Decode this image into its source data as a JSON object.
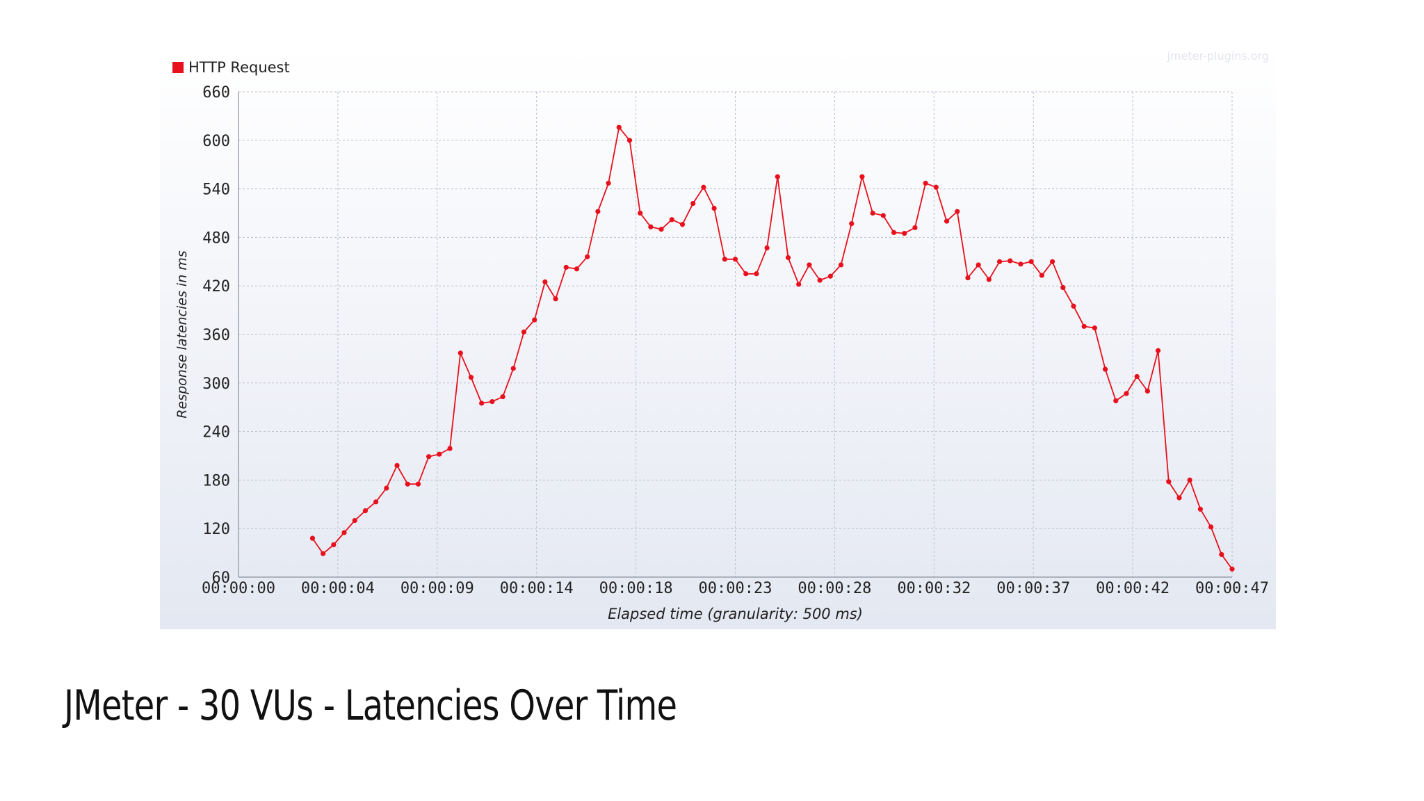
{
  "slide": {
    "title": "JMeter - 30 VUs - Latencies Over Time"
  },
  "watermark": "jmeter-plugins.org",
  "colors": {
    "series": "#e8101c",
    "grid": "#b9bfc9",
    "panel_top": "#ffffff",
    "panel_bottom": "#e4e8f2"
  },
  "chart_data": {
    "type": "line",
    "xlabel": "Elapsed time (granularity: 500 ms)",
    "ylabel": "Response latencies in ms",
    "xlim": [
      0,
      47
    ],
    "ylim": [
      60,
      660
    ],
    "x_ticks": [
      0,
      4.7,
      9.4,
      14.1,
      18.8,
      23.5,
      28.2,
      32.9,
      37.6,
      42.3,
      47
    ],
    "x_tick_labels": [
      "00:00:00",
      "00:00:04",
      "00:00:09",
      "00:00:14",
      "00:00:18",
      "00:00:23",
      "00:00:28",
      "00:00:32",
      "00:00:37",
      "00:00:42",
      "00:00:47"
    ],
    "y_ticks": [
      60,
      120,
      180,
      240,
      300,
      360,
      420,
      480,
      540,
      600,
      660
    ],
    "grid": true,
    "legend": "top-left",
    "series": [
      {
        "name": "HTTP Request",
        "points": [
          [
            3.5,
            108
          ],
          [
            4.0,
            89
          ],
          [
            4.5,
            100
          ],
          [
            5.0,
            115
          ],
          [
            5.5,
            130
          ],
          [
            6.0,
            142
          ],
          [
            6.5,
            153
          ],
          [
            7.0,
            170
          ],
          [
            7.5,
            198
          ],
          [
            8.0,
            175
          ],
          [
            8.5,
            175
          ],
          [
            9.0,
            209
          ],
          [
            9.5,
            212
          ],
          [
            10.0,
            219
          ],
          [
            10.5,
            337
          ],
          [
            11.0,
            307
          ],
          [
            11.5,
            275
          ],
          [
            12.0,
            277
          ],
          [
            12.5,
            283
          ],
          [
            13.0,
            318
          ],
          [
            13.5,
            363
          ],
          [
            14.0,
            378
          ],
          [
            14.5,
            425
          ],
          [
            15.0,
            404
          ],
          [
            15.5,
            443
          ],
          [
            16.0,
            441
          ],
          [
            16.5,
            456
          ],
          [
            17.0,
            512
          ],
          [
            17.5,
            547
          ],
          [
            18.0,
            616
          ],
          [
            18.5,
            600
          ],
          [
            19.0,
            510
          ],
          [
            19.5,
            493
          ],
          [
            20.0,
            490
          ],
          [
            20.5,
            502
          ],
          [
            21.0,
            496
          ],
          [
            21.5,
            522
          ],
          [
            22.0,
            542
          ],
          [
            22.5,
            516
          ],
          [
            23.0,
            453
          ],
          [
            23.5,
            453
          ],
          [
            24.0,
            435
          ],
          [
            24.5,
            435
          ],
          [
            25.0,
            467
          ],
          [
            25.5,
            555
          ],
          [
            26.0,
            455
          ],
          [
            26.5,
            422
          ],
          [
            27.0,
            446
          ],
          [
            27.5,
            427
          ],
          [
            28.0,
            432
          ],
          [
            28.5,
            446
          ],
          [
            29.0,
            497
          ],
          [
            29.5,
            555
          ],
          [
            30.0,
            510
          ],
          [
            30.5,
            507
          ],
          [
            31.0,
            486
          ],
          [
            31.5,
            485
          ],
          [
            32.0,
            492
          ],
          [
            32.5,
            547
          ],
          [
            33.0,
            542
          ],
          [
            33.5,
            500
          ],
          [
            34.0,
            512
          ],
          [
            34.5,
            430
          ],
          [
            35.0,
            446
          ],
          [
            35.5,
            428
          ],
          [
            36.0,
            450
          ],
          [
            36.5,
            451
          ],
          [
            37.0,
            447
          ],
          [
            37.5,
            450
          ],
          [
            38.0,
            433
          ],
          [
            38.5,
            450
          ],
          [
            39.0,
            418
          ],
          [
            39.5,
            395
          ],
          [
            40.0,
            370
          ],
          [
            40.5,
            368
          ],
          [
            41.0,
            317
          ],
          [
            41.5,
            278
          ],
          [
            42.0,
            287
          ],
          [
            42.5,
            308
          ],
          [
            43.0,
            290
          ],
          [
            43.5,
            340
          ],
          [
            44.0,
            178
          ],
          [
            44.5,
            158
          ],
          [
            45.0,
            180
          ],
          [
            45.5,
            144
          ],
          [
            46.0,
            122
          ],
          [
            46.5,
            88
          ],
          [
            47.0,
            70
          ]
        ]
      }
    ]
  }
}
